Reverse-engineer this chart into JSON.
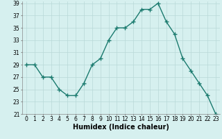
{
  "x": [
    0,
    1,
    2,
    3,
    4,
    5,
    6,
    7,
    8,
    9,
    10,
    11,
    12,
    13,
    14,
    15,
    16,
    17,
    18,
    19,
    20,
    21,
    22,
    23
  ],
  "y": [
    29,
    29,
    27,
    27,
    25,
    24,
    24,
    26,
    29,
    30,
    33,
    35,
    35,
    36,
    38,
    38,
    39,
    36,
    34,
    30,
    28,
    26,
    24,
    21
  ],
  "xlabel": "Humidex (Indice chaleur)",
  "ylim": [
    21,
    39
  ],
  "xlim": [
    -0.5,
    23.5
  ],
  "yticks": [
    21,
    23,
    25,
    27,
    29,
    31,
    33,
    35,
    37,
    39
  ],
  "xticks": [
    0,
    1,
    2,
    3,
    4,
    5,
    6,
    7,
    8,
    9,
    10,
    11,
    12,
    13,
    14,
    15,
    16,
    17,
    18,
    19,
    20,
    21,
    22,
    23
  ],
  "line_color": "#1a7a6e",
  "marker_color": "#1a7a6e",
  "bg_color": "#d6f0ef",
  "grid_color": "#b8d8d8",
  "tick_label_fontsize": 5.5,
  "xlabel_fontsize": 7,
  "marker": "+",
  "linewidth": 1.0,
  "markersize": 4
}
